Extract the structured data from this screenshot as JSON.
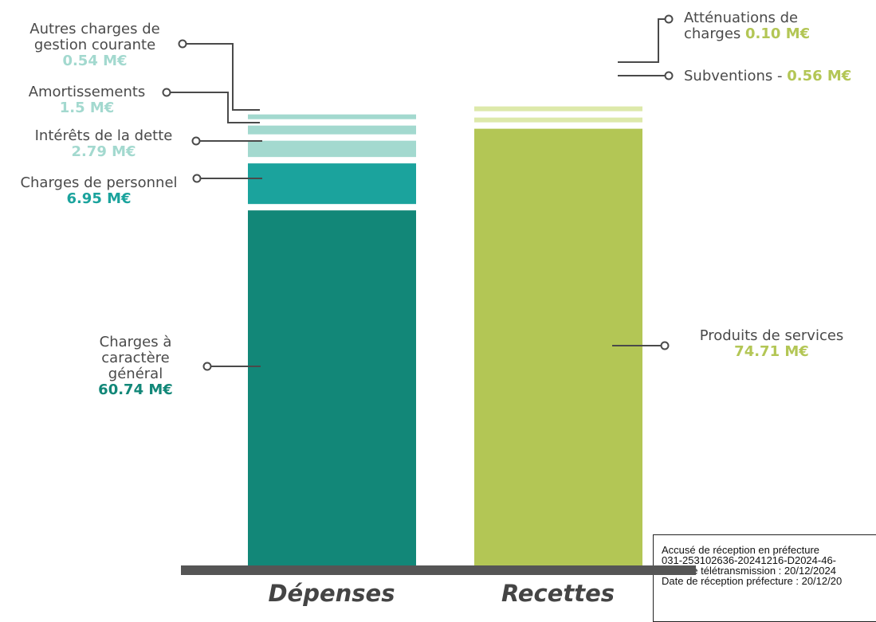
{
  "chart_data": {
    "type": "stacked-bar",
    "unit": "M€",
    "categories": [
      "Dépenses",
      "Recettes"
    ],
    "series": [
      {
        "category": "Dépenses",
        "segments": [
          {
            "name": "Charges à caractère général",
            "value": 60.74,
            "value_label": "60.74 M€",
            "color": "#128778"
          },
          {
            "name": "Charges de personnel",
            "value": 6.95,
            "value_label": "6.95 M€",
            "color": "#1ba39d"
          },
          {
            "name": "Intérêts de la dette",
            "value": 2.79,
            "value_label": "2.79 M€",
            "color": "#a3d9cf"
          },
          {
            "name": "Amortissements",
            "value": 1.5,
            "value_label": "1.5 M€",
            "color": "#a3d9cf"
          },
          {
            "name": "Autres charges de gestion courante",
            "value": 0.54,
            "value_label": "0.54 M€",
            "color": "#a3d9cf"
          }
        ]
      },
      {
        "category": "Recettes",
        "segments": [
          {
            "name": "Produits de services",
            "value": 74.71,
            "value_label": "74.71 M€",
            "color": "#b3c655"
          },
          {
            "name": "Subventions",
            "value": 0.56,
            "value_label": "0.56 M€",
            "color": "#dde9aa"
          },
          {
            "name": "Atténuations de charges",
            "value": 0.1,
            "value_label": "0.10 M€",
            "color": "#dde9aa"
          }
        ]
      }
    ],
    "labels": {
      "autres_1": "Autres charges de",
      "autres_2": "gestion courante",
      "autres_v": "0.54 M€",
      "amort": "Amortissements",
      "amort_v": "1.5 M€",
      "interets": "Intérêts de la dette",
      "interets_v": "2.79 M€",
      "personnel": "Charges de personnel",
      "personnel_v": "6.95 M€",
      "general_1": "Charges à",
      "general_2": "caractère",
      "general_3": "général",
      "general_v": "60.74 M€",
      "attenuations_1": "Atténuations de",
      "attenuations_2": "charges ",
      "attenuations_v": "0.10 M€",
      "subventions": "Subventions - ",
      "subventions_v": "0.56 M€",
      "produits": "Produits de services",
      "produits_v": "74.71 M€"
    }
  },
  "colors": {
    "depenses_dark": "#128778",
    "depenses_mid": "#1ba39d",
    "depenses_light": "#a3d9cf",
    "recettes_dark": "#b3c655",
    "recettes_light": "#dde9aa",
    "baseline": "#555555",
    "leader": "#4a4a4a"
  },
  "stamp": {
    "line1": "Accusé de réception en préfecture",
    "line2": "031-253102636-20241216-D2024-46-",
    "line3": "Date de télétransmission : 20/12/2024",
    "line4": "Date de réception préfecture : 20/12/20"
  }
}
